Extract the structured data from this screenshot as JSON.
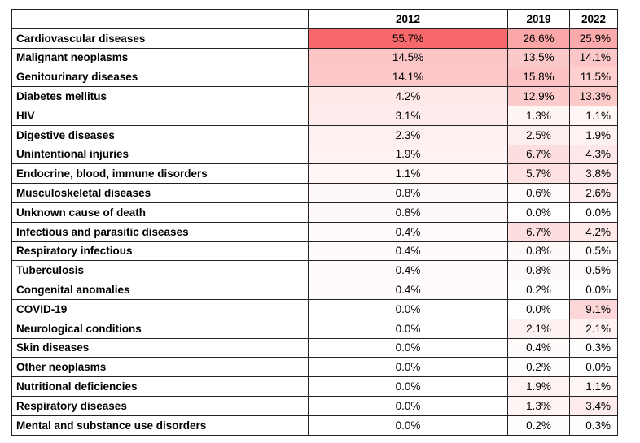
{
  "chart_data": {
    "type": "table",
    "columns": [
      "",
      "2012",
      "2019",
      "2022"
    ],
    "rows": [
      {
        "label": "Cardiovascular diseases",
        "values": [
          "55.7%",
          "26.6%",
          "25.9%"
        ],
        "numeric": [
          55.7,
          26.6,
          25.9
        ]
      },
      {
        "label": "Malignant neoplasms",
        "values": [
          "14.5%",
          "13.5%",
          "14.1%"
        ],
        "numeric": [
          14.5,
          13.5,
          14.1
        ]
      },
      {
        "label": "Genitourinary diseases",
        "values": [
          "14.1%",
          "15.8%",
          "11.5%"
        ],
        "numeric": [
          14.1,
          15.8,
          11.5
        ]
      },
      {
        "label": "Diabetes mellitus",
        "values": [
          "4.2%",
          "12.9%",
          "13.3%"
        ],
        "numeric": [
          4.2,
          12.9,
          13.3
        ]
      },
      {
        "label": "HIV",
        "values": [
          "3.1%",
          "1.3%",
          "1.1%"
        ],
        "numeric": [
          3.1,
          1.3,
          1.1
        ]
      },
      {
        "label": "Digestive diseases",
        "values": [
          "2.3%",
          "2.5%",
          "1.9%"
        ],
        "numeric": [
          2.3,
          2.5,
          1.9
        ]
      },
      {
        "label": "Unintentional injuries",
        "values": [
          "1.9%",
          "6.7%",
          "4.3%"
        ],
        "numeric": [
          1.9,
          6.7,
          4.3
        ]
      },
      {
        "label": "Endocrine, blood, immune disorders",
        "values": [
          "1.1%",
          "5.7%",
          "3.8%"
        ],
        "numeric": [
          1.1,
          5.7,
          3.8
        ]
      },
      {
        "label": "Musculoskeletal diseases",
        "values": [
          "0.8%",
          "0.6%",
          "2.6%"
        ],
        "numeric": [
          0.8,
          0.6,
          2.6
        ]
      },
      {
        "label": "Unknown cause of death",
        "values": [
          "0.8%",
          "0.0%",
          "0.0%"
        ],
        "numeric": [
          0.8,
          0.0,
          0.0
        ]
      },
      {
        "label": "Infectious and parasitic diseases",
        "values": [
          "0.4%",
          "6.7%",
          "4.2%"
        ],
        "numeric": [
          0.4,
          6.7,
          4.2
        ]
      },
      {
        "label": "Respiratory infectious",
        "values": [
          "0.4%",
          "0.8%",
          "0.5%"
        ],
        "numeric": [
          0.4,
          0.8,
          0.5
        ]
      },
      {
        "label": "Tuberculosis",
        "values": [
          "0.4%",
          "0.8%",
          "0.5%"
        ],
        "numeric": [
          0.4,
          0.8,
          0.5
        ]
      },
      {
        "label": "Congenital anomalies",
        "values": [
          "0.4%",
          "0.2%",
          "0.0%"
        ],
        "numeric": [
          0.4,
          0.2,
          0.0
        ]
      },
      {
        "label": "COVID-19",
        "values": [
          "0.0%",
          "0.0%",
          "9.1%"
        ],
        "numeric": [
          0.0,
          0.0,
          9.1
        ]
      },
      {
        "label": "Neurological conditions",
        "values": [
          "0.0%",
          "2.1%",
          "2.1%"
        ],
        "numeric": [
          0.0,
          2.1,
          2.1
        ]
      },
      {
        "label": "Skin diseases",
        "values": [
          "0.0%",
          "0.4%",
          "0.3%"
        ],
        "numeric": [
          0.0,
          0.4,
          0.3
        ]
      },
      {
        "label": "Other neoplasms",
        "values": [
          "0.0%",
          "0.2%",
          "0.0%"
        ],
        "numeric": [
          0.0,
          0.2,
          0.0
        ]
      },
      {
        "label": "Nutritional deficiencies",
        "values": [
          "0.0%",
          "1.9%",
          "1.1%"
        ],
        "numeric": [
          0.0,
          1.9,
          1.1
        ]
      },
      {
        "label": "Respiratory diseases",
        "values": [
          "0.0%",
          "1.3%",
          "3.4%"
        ],
        "numeric": [
          0.0,
          1.3,
          3.4
        ]
      },
      {
        "label": "Mental and substance use disorders",
        "values": [
          "0.0%",
          "0.2%",
          "0.3%"
        ],
        "numeric": [
          0.0,
          0.2,
          0.3
        ]
      }
    ],
    "heatmap": {
      "low_color": "#ffffff",
      "high_color": "#f8696b",
      "min": 0,
      "max": 55.7
    }
  }
}
